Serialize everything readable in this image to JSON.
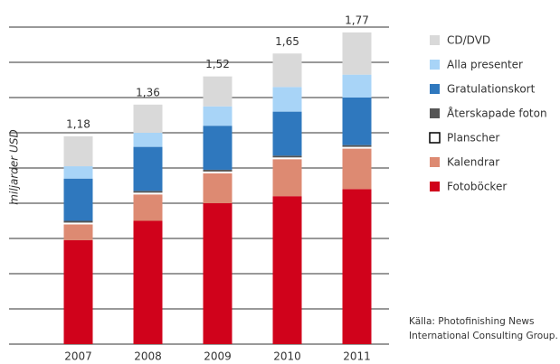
{
  "chart_data": {
    "type": "stacked_bar",
    "y_label": "miljarder USD",
    "source": [
      "Källa: Photofinishing News",
      "International Consulting Group."
    ],
    "categories": [
      "2007",
      "2008",
      "2009",
      "2010",
      "2011"
    ],
    "series": [
      {
        "name": "Fotoböcker",
        "color": "#d0021b",
        "values": [
          0.59,
          0.7,
          0.8,
          0.84,
          0.88
        ]
      },
      {
        "name": "Kalendrar",
        "color": "#dd8a72",
        "values": [
          0.09,
          0.15,
          0.17,
          0.21,
          0.23
        ]
      },
      {
        "name": "Planscher",
        "color": "#ffffff",
        "values": [
          0.01,
          0.01,
          0.01,
          0.01,
          0.01
        ]
      },
      {
        "name": "Återskapade foton",
        "color": "#555555",
        "values": [
          0.01,
          0.01,
          0.01,
          0.01,
          0.01
        ]
      },
      {
        "name": "Gratulationskort",
        "color": "#2f78be",
        "values": [
          0.24,
          0.25,
          0.25,
          0.25,
          0.27
        ]
      },
      {
        "name": "Alla presenter",
        "color": "#a8d4f7",
        "values": [
          0.07,
          0.08,
          0.11,
          0.14,
          0.13
        ]
      },
      {
        "name": "CD/DVD",
        "color": "#d9d9d9",
        "values": [
          0.17,
          0.16,
          0.17,
          0.19,
          0.24
        ]
      }
    ],
    "totals": {
      "values": [
        1.18,
        1.36,
        1.52,
        1.65,
        1.77
      ],
      "value_labels": [
        "1,18",
        "1,36",
        "1,52",
        "1,65",
        "1,77"
      ]
    },
    "ylim": [
      0,
      1.8
    ],
    "yticks": [
      0,
      0.2,
      0.4,
      0.6,
      0.8,
      1.0,
      1.2,
      1.4,
      1.6,
      1.8
    ],
    "grid": true,
    "legend": "right"
  }
}
